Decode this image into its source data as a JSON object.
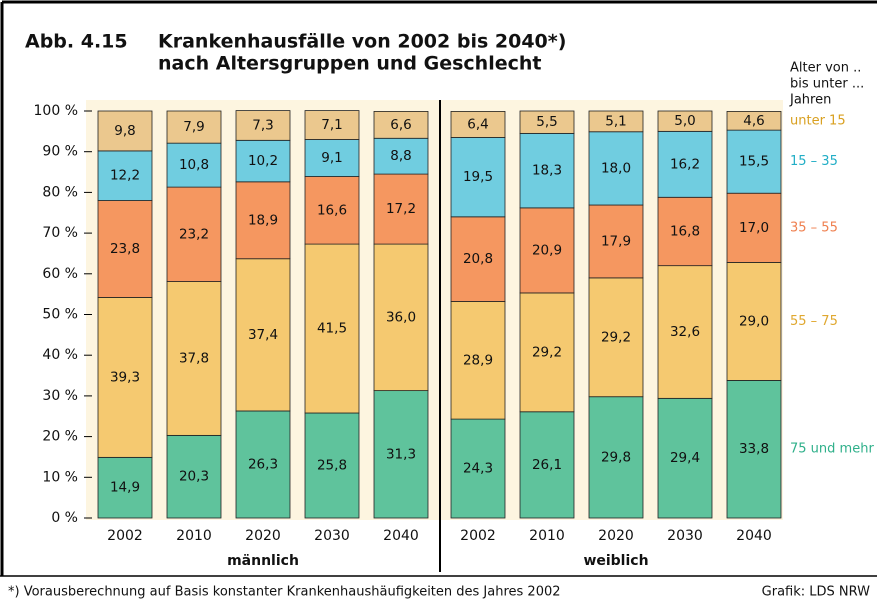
{
  "chart_data": {
    "type": "stacked_bar",
    "title_number": "Abb. 4.15",
    "title": "Krankenhausfälle von 2002 bis 2040*)",
    "subtitle": "nach Altersgruppen und Geschlecht",
    "legend_title": [
      "Alter von ..",
      "bis unter ...",
      "Jahren"
    ],
    "categories": [
      "2002",
      "2010",
      "2020",
      "2030",
      "2040",
      "2002",
      "2010",
      "2020",
      "2030",
      "2040"
    ],
    "groups": [
      "männlich",
      "weiblich"
    ],
    "series": [
      {
        "name": "75 und mehr",
        "color": "#5fc39c",
        "label_color": "#2fb08a",
        "values": [
          14.9,
          20.3,
          26.3,
          25.8,
          31.3,
          24.3,
          26.1,
          29.8,
          29.4,
          33.8
        ],
        "value_labels": [
          "14,9",
          "20,3",
          "26,3",
          "25,8",
          "31,3",
          "24,3",
          "26,1",
          "29,8",
          "29,4",
          "33,8"
        ]
      },
      {
        "name": "55 – 75",
        "color": "#f5c970",
        "label_color": "#e0a830",
        "values": [
          39.3,
          37.8,
          37.4,
          41.5,
          36.0,
          28.9,
          29.2,
          29.2,
          32.6,
          29.0
        ],
        "value_labels": [
          "39,3",
          "37,8",
          "37,4",
          "41,5",
          "36,0",
          "28,9",
          "29,2",
          "29,2",
          "32,6",
          "29,0"
        ]
      },
      {
        "name": "35 – 55",
        "color": "#f59760",
        "label_color": "#ef8050",
        "values": [
          23.8,
          23.2,
          18.9,
          16.6,
          17.2,
          20.8,
          20.9,
          17.9,
          16.8,
          17.0
        ],
        "value_labels": [
          "23,8",
          "23,2",
          "18,9",
          "16,6",
          "17,2",
          "20,8",
          "20,9",
          "17,9",
          "16,8",
          "17,0"
        ]
      },
      {
        "name": "15 – 35",
        "color": "#70cde0",
        "label_color": "#22aec6",
        "values": [
          12.2,
          10.8,
          10.2,
          9.1,
          8.8,
          19.5,
          18.3,
          18.0,
          16.2,
          15.5
        ],
        "value_labels": [
          "12,2",
          "10,8",
          "10,2",
          "9,1",
          "8,8",
          "19,5",
          "18,3",
          "18,0",
          "16,2",
          "15,5"
        ]
      },
      {
        "name": "unter 15",
        "color": "#ebc88e",
        "label_color": "#d9a020",
        "values": [
          9.8,
          7.9,
          7.3,
          7.1,
          6.6,
          6.4,
          5.5,
          5.1,
          5.0,
          4.6
        ],
        "value_labels": [
          "9,8",
          "7,9",
          "7,3",
          "7,1",
          "6,6",
          "6,4",
          "5,5",
          "5,1",
          "5,0",
          "4,6"
        ]
      }
    ],
    "ylim": [
      0,
      100
    ],
    "yticks": [
      {
        "value": 0,
        "label": "0 %"
      },
      {
        "value": 10,
        "label": "10 %"
      },
      {
        "value": 20,
        "label": "20 %"
      },
      {
        "value": 30,
        "label": "30 %"
      },
      {
        "value": 40,
        "label": "40 %"
      },
      {
        "value": 50,
        "label": "50 %"
      },
      {
        "value": 60,
        "label": "60 %"
      },
      {
        "value": 70,
        "label": "70 %"
      },
      {
        "value": 80,
        "label": "80 %"
      },
      {
        "value": 90,
        "label": "90 %"
      },
      {
        "value": 100,
        "label": "100 %"
      }
    ],
    "footnote": "*) Vorausberechnung auf Basis konstanter Krankenhaushäufigkeiten des Jahres 2002",
    "source": "Grafik: LDS NRW"
  }
}
